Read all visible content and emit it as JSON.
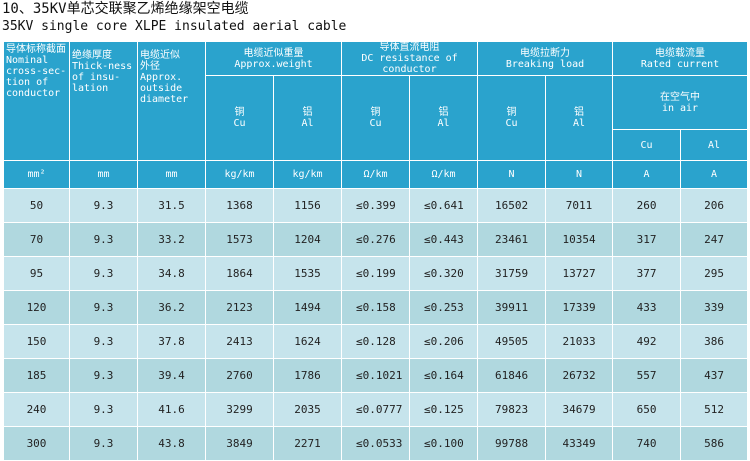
{
  "title": "10、35KV单芯交联聚乙烯绝缘架空电缆",
  "subtitle": "35KV single core XLPE insulated aerial cable",
  "header": {
    "nominal": [
      "导体标称截面",
      "Nominal",
      "cross-sec-",
      "tion of",
      "conductor"
    ],
    "thickness": [
      "绝缘厚度",
      "Thick-ness",
      "of insu-",
      "lation"
    ],
    "diameter": [
      "电缆近似",
      "外径",
      "Approx.",
      "outside",
      "diameter"
    ],
    "weight": [
      "电缆近似重量",
      "Approx.weight"
    ],
    "resistance": [
      "导体直流电阻",
      "DC resistance of conductor"
    ],
    "breaking": [
      "电缆拉断力",
      "Breaking  load"
    ],
    "current": [
      "电缆载流量",
      "Rated current"
    ],
    "in_air": [
      "在空气中",
      "in air"
    ],
    "cu": [
      "铜",
      "Cu"
    ],
    "al": [
      "铝",
      "Al"
    ],
    "cu_short": "Cu",
    "al_short": "Al"
  },
  "units": [
    "mm²",
    "mm",
    "mm",
    "kg/km",
    "kg/km",
    "Ω/km",
    "Ω/km",
    "N",
    "N",
    "A",
    "A"
  ],
  "rows": [
    [
      "50",
      "9.3",
      "31.5",
      "1368",
      "1156",
      "≤0.399",
      "≤0.641",
      "16502",
      "7011",
      "260",
      "206"
    ],
    [
      "70",
      "9.3",
      "33.2",
      "1573",
      "1204",
      "≤0.276",
      "≤0.443",
      "23461",
      "10354",
      "317",
      "247"
    ],
    [
      "95",
      "9.3",
      "34.8",
      "1864",
      "1535",
      "≤0.199",
      "≤0.320",
      "31759",
      "13727",
      "377",
      "295"
    ],
    [
      "120",
      "9.3",
      "36.2",
      "2123",
      "1494",
      "≤0.158",
      "≤0.253",
      "39911",
      "17339",
      "433",
      "339"
    ],
    [
      "150",
      "9.3",
      "37.8",
      "2413",
      "1624",
      "≤0.128",
      "≤0.206",
      "49505",
      "21033",
      "492",
      "386"
    ],
    [
      "185",
      "9.3",
      "39.4",
      "2760",
      "1786",
      "≤0.1021",
      "≤0.164",
      "61846",
      "26732",
      "557",
      "437"
    ],
    [
      "240",
      "9.3",
      "41.6",
      "3299",
      "2035",
      "≤0.0777",
      "≤0.125",
      "79823",
      "34679",
      "650",
      "512"
    ],
    [
      "300",
      "9.3",
      "43.8",
      "3849",
      "2271",
      "≤0.0533",
      "≤0.100",
      "99788",
      "43349",
      "740",
      "586"
    ]
  ],
  "colors": {
    "header_bg": "#2aa3cd",
    "row_light": "#c6e4ec",
    "row_dark": "#b0d8df"
  }
}
